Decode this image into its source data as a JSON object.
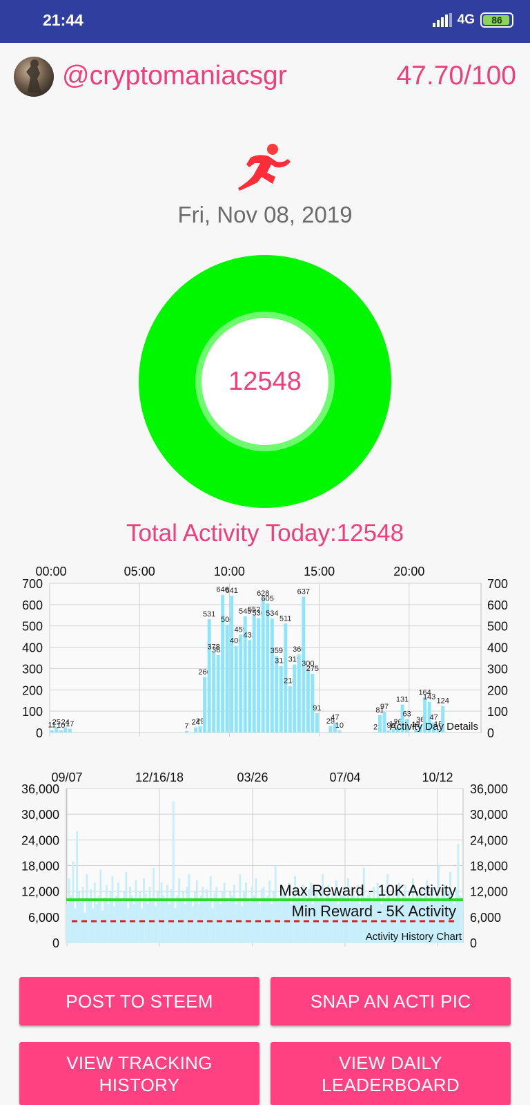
{
  "status_bar": {
    "time": "21:44",
    "network": "4G",
    "battery": "86"
  },
  "profile": {
    "username": "@cryptomaniacsgr",
    "score": "47.70/100"
  },
  "date": "Fri, Nov 08, 2019",
  "ring": {
    "value": "12548"
  },
  "total_label": "Total Activity Today:12548",
  "colors": {
    "accent": "#ef3f7a",
    "ring": "#00f700",
    "bars": "#8ee4f9",
    "button": "#ff4081"
  },
  "chart_day": {
    "type": "bar",
    "caption": "Activity Day Details",
    "x_ticks": [
      "00:00",
      "05:00",
      "10:00",
      "15:00",
      "20:00"
    ],
    "y_ticks": [
      "700",
      "600",
      "500",
      "400",
      "300",
      "200",
      "100",
      "0"
    ],
    "ylim": [
      0,
      700
    ],
    "x_unit": "15-min slot (0-95)",
    "points": [
      {
        "x": 0,
        "v": 11
      },
      {
        "x": 1,
        "v": 25
      },
      {
        "x": 2,
        "v": 10
      },
      {
        "x": 3,
        "v": 24
      },
      {
        "x": 4,
        "v": 17
      },
      {
        "x": 30,
        "v": 7
      },
      {
        "x": 32,
        "v": 24
      },
      {
        "x": 33,
        "v": 29
      },
      {
        "x": 34,
        "v": 260
      },
      {
        "x": 35,
        "v": 531
      },
      {
        "x": 36,
        "v": 378
      },
      {
        "x": 37,
        "v": 363
      },
      {
        "x": 38,
        "v": 646
      },
      {
        "x": 39,
        "v": 506
      },
      {
        "x": 40,
        "v": 641
      },
      {
        "x": 41,
        "v": 406
      },
      {
        "x": 42,
        "v": 459
      },
      {
        "x": 43,
        "v": 545
      },
      {
        "x": 44,
        "v": 433
      },
      {
        "x": 45,
        "v": 552
      },
      {
        "x": 46,
        "v": 536
      },
      {
        "x": 47,
        "v": 628
      },
      {
        "x": 48,
        "v": 605
      },
      {
        "x": 49,
        "v": 534
      },
      {
        "x": 50,
        "v": 359
      },
      {
        "x": 51,
        "v": 312
      },
      {
        "x": 52,
        "v": 511
      },
      {
        "x": 53,
        "v": 218
      },
      {
        "x": 54,
        "v": 319
      },
      {
        "x": 55,
        "v": 366
      },
      {
        "x": 56,
        "v": 637
      },
      {
        "x": 57,
        "v": 300
      },
      {
        "x": 58,
        "v": 275
      },
      {
        "x": 59,
        "v": 91
      },
      {
        "x": 62,
        "v": 29
      },
      {
        "x": 63,
        "v": 47
      },
      {
        "x": 64,
        "v": 10
      },
      {
        "x": 72,
        "v": 2
      },
      {
        "x": 73,
        "v": 81
      },
      {
        "x": 74,
        "v": 97
      },
      {
        "x": 75,
        "v": 9
      },
      {
        "x": 76,
        "v": 17
      },
      {
        "x": 77,
        "v": 26
      },
      {
        "x": 78,
        "v": 131
      },
      {
        "x": 79,
        "v": 63
      },
      {
        "x": 81,
        "v": 13
      },
      {
        "x": 82,
        "v": 36
      },
      {
        "x": 83,
        "v": 164
      },
      {
        "x": 84,
        "v": 143
      },
      {
        "x": 85,
        "v": 47
      },
      {
        "x": 86,
        "v": 15
      },
      {
        "x": 87,
        "v": 124
      }
    ]
  },
  "chart_history": {
    "type": "bar",
    "caption": "Activity History Chart",
    "x_ticks": [
      "09/07",
      "12/16/18",
      "03/26",
      "07/04",
      "10/12"
    ],
    "y_ticks": [
      "36,000",
      "30,000",
      "24,000",
      "18,000",
      "12,000",
      "6,000",
      "0"
    ],
    "ylim": [
      0,
      36000
    ],
    "max_line": {
      "value": 10000,
      "label": "Max Reward - 10K Activity",
      "color": "#22dd22"
    },
    "min_line": {
      "value": 5000,
      "label": "Min Reward - 5K Activity",
      "color": "#e02020"
    },
    "values": [
      9000,
      15000,
      11000,
      19000,
      8000,
      26000,
      12000,
      9500,
      13000,
      7000,
      16000,
      10000,
      12500,
      8000,
      14000,
      9000,
      11000,
      17000,
      7500,
      10500,
      13500,
      9000,
      12000,
      15500,
      8500,
      11000,
      14000,
      10000,
      9500,
      12000,
      16500,
      8000,
      13000,
      11000,
      9000,
      14500,
      10000,
      12000,
      8000,
      15000,
      11500,
      9000,
      13000,
      10500,
      17500,
      8500,
      12000,
      9500,
      14000,
      11000,
      10000,
      13500,
      9000,
      12500,
      33000,
      8000,
      11000,
      15000,
      10000,
      12000,
      9000,
      13000,
      16000,
      10500,
      8500,
      12000,
      14500,
      9000,
      11000,
      13000,
      10000,
      12500,
      9500,
      15500,
      8000,
      11500,
      13000,
      10000,
      9000,
      12000,
      14000,
      10500,
      9500,
      12000,
      11000,
      13500,
      9000,
      10000,
      16000,
      8500,
      12000,
      14000,
      10000,
      9500,
      13000,
      11000,
      15000,
      10000,
      9000,
      12500,
      13000,
      10500,
      11000,
      14500,
      9000,
      12000,
      18000,
      10000,
      9500,
      13000,
      11500,
      12000,
      10000,
      14000,
      9000,
      11000,
      15500,
      10500,
      12000,
      9500,
      13500,
      11000,
      10000,
      12500,
      14000,
      9000,
      11500,
      13000,
      10000,
      12000,
      16000,
      9500,
      11000,
      13500,
      10500,
      12000,
      10000,
      14500,
      9000,
      12000,
      11000,
      13000,
      10000,
      15000,
      9500,
      12500,
      11000,
      10000,
      13500,
      9000,
      12000,
      17500,
      10500,
      11000,
      12000,
      9500,
      13000,
      10000,
      14000,
      11500,
      9000,
      12500,
      10000,
      16000,
      11000,
      9500,
      13000,
      10000,
      12000,
      14000,
      9000,
      11000,
      13500,
      10500,
      12000,
      10000,
      15000,
      9500,
      12000,
      11000,
      13000,
      10000,
      12500,
      14500,
      9000,
      11500,
      13000,
      10000,
      12000,
      18000,
      9500,
      11000,
      13500,
      10500,
      12000,
      16500,
      10000,
      9000,
      12500,
      23000,
      11000,
      10000
    ]
  },
  "buttons": {
    "post": "POST TO STEEM",
    "snap": "SNAP AN ACTI PIC",
    "tracking": "VIEW TRACKING\nHISTORY",
    "leaderboard": "VIEW DAILY\nLEADERBOARD"
  }
}
